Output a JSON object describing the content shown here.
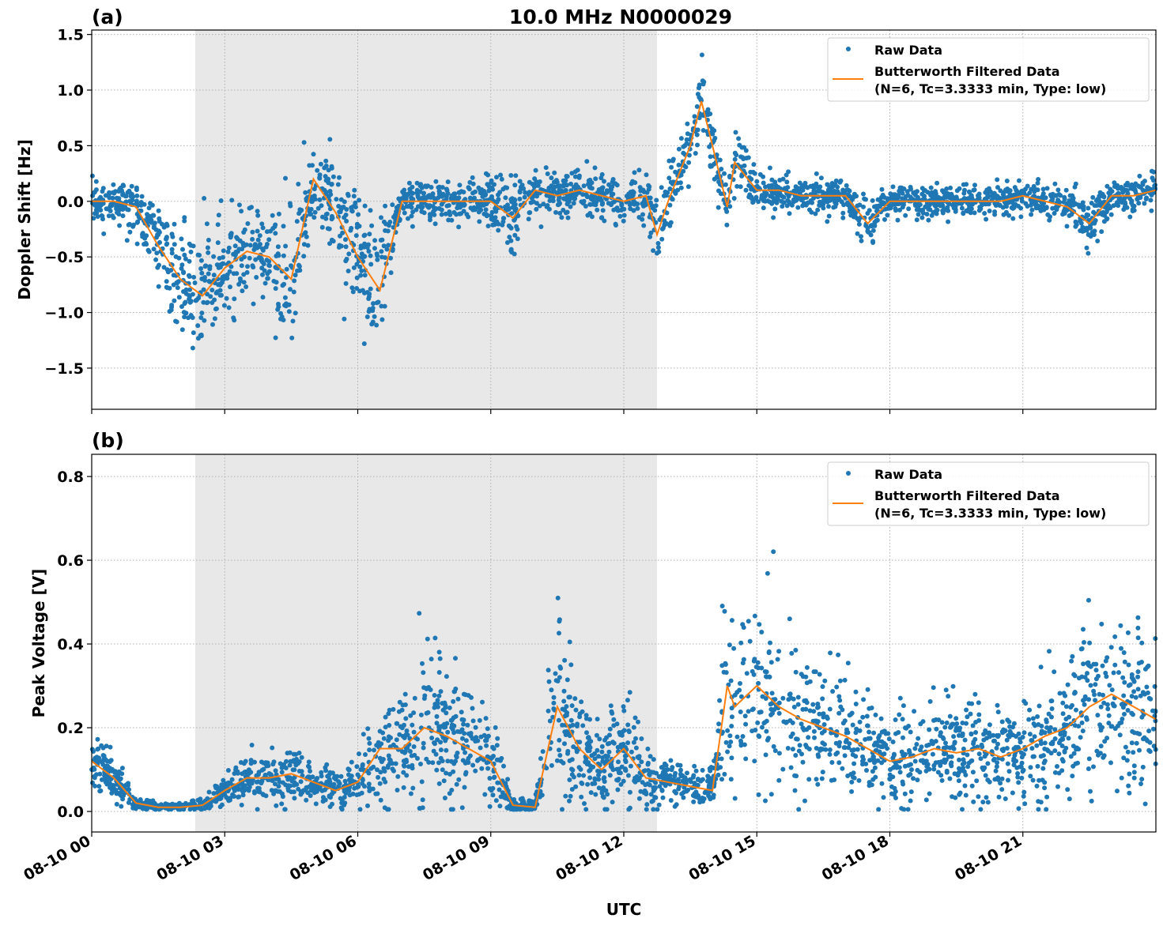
{
  "title": "10.0 MHz N0000029",
  "chart_data": [
    {
      "panel": "(a)",
      "type": "scatter+line",
      "ylabel": "Doppler Shift [Hz]",
      "xlabel": "",
      "ylim": [
        -1.87,
        1.54
      ],
      "xlim": [
        "08-10 00:00",
        "08-11 00:00"
      ],
      "yticks": [
        "−1.5",
        "−1.0",
        "−0.5",
        "0.0",
        "0.5",
        "1.0",
        "1.5"
      ],
      "ytick_values": [
        -1.5,
        -1,
        -0.5,
        0,
        0.5,
        1,
        1.5
      ],
      "grid": true,
      "legend_placement": "top-right",
      "shaded_interval": [
        "08-10 02:20",
        "08-10 12:45"
      ],
      "legend": [
        "Raw Data",
        "Butterworth Filtered Data",
        "(N=6, Tc=3.3333 min, Type: low)"
      ],
      "filtered": {
        "x": [
          "00:00",
          "00:30",
          "01:00",
          "01:30",
          "02:00",
          "02:30",
          "03:00",
          "03:30",
          "04:00",
          "04:30",
          "05:00",
          "05:30",
          "06:00",
          "06:30",
          "07:00",
          "07:30",
          "08:00",
          "08:30",
          "09:00",
          "09:30",
          "10:00",
          "10:30",
          "11:00",
          "11:30",
          "12:00",
          "12:30",
          "12:45",
          "13:00",
          "13:30",
          "13:45",
          "14:00",
          "14:20",
          "14:30",
          "15:00",
          "15:30",
          "16:00",
          "16:30",
          "17:00",
          "17:30",
          "18:00",
          "18:30",
          "19:00",
          "19:30",
          "20:00",
          "20:30",
          "21:00",
          "21:30",
          "22:00",
          "22:30",
          "23:00",
          "23:30",
          "24:00"
        ],
        "y": [
          0.0,
          0.0,
          -0.05,
          -0.4,
          -0.7,
          -0.85,
          -0.6,
          -0.45,
          -0.5,
          -0.7,
          0.2,
          -0.1,
          -0.5,
          -0.8,
          0.0,
          0.0,
          0.0,
          0.0,
          0.0,
          -0.15,
          0.1,
          0.05,
          0.1,
          0.05,
          0.0,
          0.05,
          -0.3,
          0.0,
          0.5,
          0.9,
          0.5,
          -0.05,
          0.35,
          0.1,
          0.1,
          0.05,
          0.05,
          0.05,
          -0.2,
          0.0,
          0.0,
          0.0,
          0.0,
          0.0,
          0.0,
          0.05,
          0.0,
          -0.05,
          -0.2,
          0.05,
          0.05,
          0.1
        ]
      },
      "raw_spread": [
        0.12,
        0.12,
        0.15,
        0.3,
        0.35,
        0.4,
        0.4,
        0.35,
        0.35,
        0.4,
        0.35,
        0.3,
        0.4,
        0.4,
        0.15,
        0.12,
        0.12,
        0.15,
        0.15,
        0.25,
        0.15,
        0.15,
        0.15,
        0.15,
        0.12,
        0.15,
        0.2,
        0.2,
        0.2,
        0.2,
        0.2,
        0.12,
        0.15,
        0.12,
        0.12,
        0.1,
        0.1,
        0.1,
        0.15,
        0.1,
        0.1,
        0.1,
        0.1,
        0.1,
        0.1,
        0.1,
        0.1,
        0.12,
        0.15,
        0.12,
        0.12,
        0.12
      ]
    },
    {
      "panel": "(b)",
      "type": "scatter+line",
      "ylabel": "Peak Voltage [V]",
      "xlabel": "UTC",
      "ylim": [
        -0.049,
        0.853
      ],
      "xlim": [
        "08-10 00:00",
        "08-11 00:00"
      ],
      "yticks": [
        "0.0",
        "0.2",
        "0.4",
        "0.6",
        "0.8"
      ],
      "ytick_values": [
        0,
        0.2,
        0.4,
        0.6,
        0.8
      ],
      "xticks": [
        "08-10 00",
        "08-10 03",
        "08-10 06",
        "08-10 09",
        "08-10 12",
        "08-10 15",
        "08-10 18",
        "08-10 21"
      ],
      "grid": true,
      "legend_placement": "top-right",
      "shaded_interval": [
        "08-10 02:20",
        "08-10 12:45"
      ],
      "legend": [
        "Raw Data",
        "Butterworth Filtered Data",
        "(N=6, Tc=3.3333 min, Type: low)"
      ],
      "filtered": {
        "x": [
          "00:00",
          "00:30",
          "01:00",
          "01:30",
          "02:00",
          "02:30",
          "03:00",
          "03:30",
          "04:00",
          "04:30",
          "05:00",
          "05:30",
          "06:00",
          "06:30",
          "07:00",
          "07:30",
          "08:00",
          "08:30",
          "09:00",
          "09:30",
          "10:00",
          "10:30",
          "11:00",
          "11:30",
          "12:00",
          "12:30",
          "13:00",
          "13:30",
          "14:00",
          "14:20",
          "14:30",
          "15:00",
          "15:30",
          "16:00",
          "16:30",
          "17:00",
          "17:30",
          "18:00",
          "18:30",
          "19:00",
          "19:30",
          "20:00",
          "20:30",
          "21:00",
          "21:30",
          "22:00",
          "22:30",
          "23:00",
          "23:30",
          "24:00"
        ],
        "y": [
          0.12,
          0.08,
          0.02,
          0.01,
          0.01,
          0.015,
          0.05,
          0.08,
          0.08,
          0.09,
          0.07,
          0.05,
          0.07,
          0.15,
          0.15,
          0.2,
          0.18,
          0.15,
          0.12,
          0.015,
          0.01,
          0.25,
          0.15,
          0.1,
          0.15,
          0.08,
          0.07,
          0.06,
          0.05,
          0.3,
          0.25,
          0.3,
          0.25,
          0.22,
          0.2,
          0.18,
          0.15,
          0.12,
          0.13,
          0.15,
          0.14,
          0.15,
          0.13,
          0.15,
          0.18,
          0.2,
          0.25,
          0.28,
          0.25,
          0.22
        ]
      },
      "raw_spread": [
        0.06,
        0.04,
        0.01,
        0.008,
        0.008,
        0.01,
        0.03,
        0.04,
        0.04,
        0.05,
        0.04,
        0.03,
        0.04,
        0.1,
        0.1,
        0.13,
        0.12,
        0.1,
        0.08,
        0.01,
        0.01,
        0.17,
        0.1,
        0.07,
        0.1,
        0.05,
        0.04,
        0.03,
        0.03,
        0.15,
        0.13,
        0.15,
        0.13,
        0.12,
        0.11,
        0.1,
        0.09,
        0.08,
        0.08,
        0.09,
        0.08,
        0.09,
        0.08,
        0.09,
        0.1,
        0.12,
        0.14,
        0.15,
        0.14,
        0.13
      ]
    }
  ],
  "colors": {
    "raw": "#1f77b4",
    "filtered": "#ff7f0e",
    "shade": "#e8e8e8"
  }
}
